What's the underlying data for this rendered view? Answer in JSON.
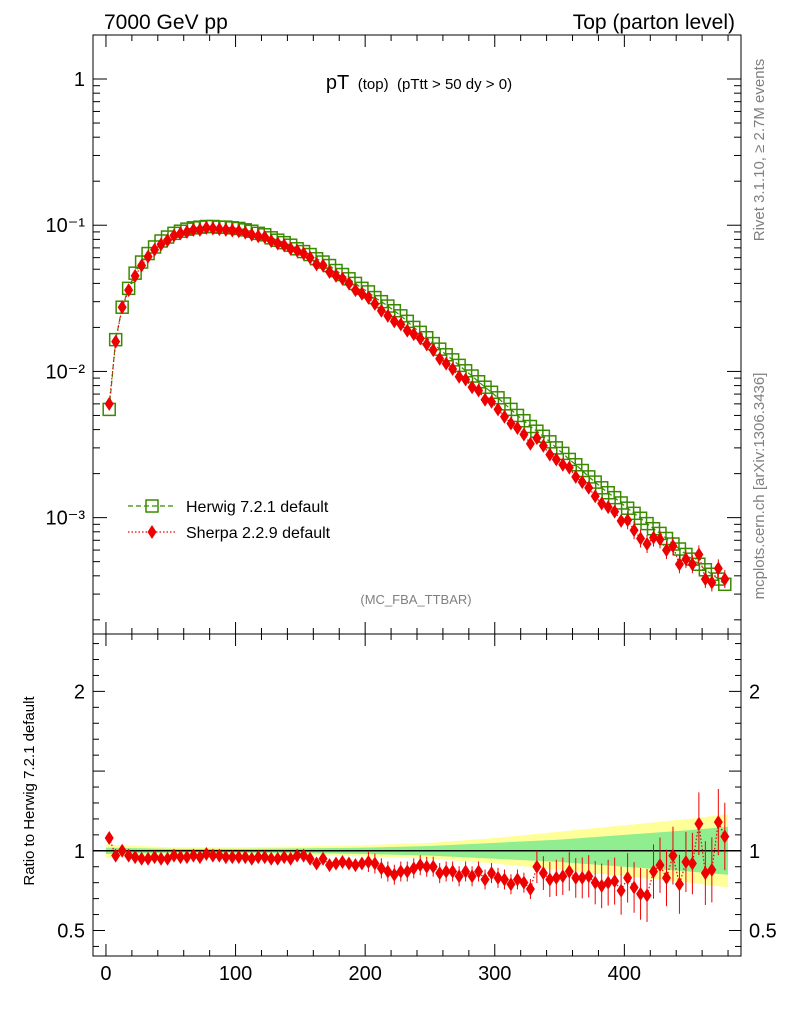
{
  "header": {
    "energy_label": "7000 GeV pp",
    "process_label": "Top (parton level)"
  },
  "side_text": {
    "rivet": "Rivet 3.1.10, ≥ 2.7M events",
    "mcplots": "mcplots.cern.ch [arXiv:1306.3436]"
  },
  "colors": {
    "herwig": "#3a8a00",
    "sherpa": "#ee0000",
    "band_inner": "#90ee90",
    "band_outer": "#ffff99"
  },
  "chart_data": [
    {
      "type": "scatter",
      "panel": "main",
      "title_main": "pT",
      "title_sub": "(top)",
      "title_cut": "(pTtt > 50 dy > 0)",
      "analysis_tag": "(MC_FBA_TTBAR)",
      "xlabel": "",
      "ylabel": "",
      "xlim": [
        -10,
        490
      ],
      "ylim": [
        0.00016,
        2.0
      ],
      "yscale": "log",
      "yticks": [
        {
          "value": 1,
          "label": "1"
        },
        {
          "value": 0.1,
          "label": "10⁻¹"
        },
        {
          "value": 0.01,
          "label": "10⁻²"
        },
        {
          "value": 0.001,
          "label": "10⁻³"
        }
      ],
      "legend_position": "bottom-left",
      "series": [
        {
          "name": "Herwig 7.2.1 default",
          "marker": "open-square",
          "line": "dashed",
          "color": "#3a8a00",
          "x": [
            2.5,
            7.5,
            12.5,
            17.5,
            22.5,
            27.5,
            32.5,
            37.5,
            42.5,
            47.5,
            52.5,
            57.5,
            62.5,
            67.5,
            72.5,
            77.5,
            82.5,
            87.5,
            92.5,
            97.5,
            102.5,
            107.5,
            112.5,
            117.5,
            122.5,
            127.5,
            132.5,
            137.5,
            142.5,
            147.5,
            152.5,
            157.5,
            162.5,
            167.5,
            172.5,
            177.5,
            182.5,
            187.5,
            192.5,
            197.5,
            202.5,
            207.5,
            212.5,
            217.5,
            222.5,
            227.5,
            232.5,
            237.5,
            242.5,
            247.5,
            252.5,
            257.5,
            262.5,
            267.5,
            272.5,
            277.5,
            282.5,
            287.5,
            292.5,
            297.5,
            302.5,
            307.5,
            312.5,
            317.5,
            322.5,
            327.5,
            332.5,
            337.5,
            342.5,
            347.5,
            352.5,
            357.5,
            362.5,
            367.5,
            372.5,
            377.5,
            382.5,
            387.5,
            392.5,
            397.5,
            402.5,
            407.5,
            412.5,
            417.5,
            422.5,
            427.5,
            432.5,
            437.5,
            442.5,
            447.5,
            452.5,
            457.5,
            462.5,
            467.5,
            472.5,
            477.5
          ],
          "values": [
            0.0055,
            0.0165,
            0.0275,
            0.037,
            0.047,
            0.056,
            0.064,
            0.071,
            0.078,
            0.083,
            0.088,
            0.091,
            0.094,
            0.096,
            0.097,
            0.098,
            0.098,
            0.097,
            0.097,
            0.096,
            0.095,
            0.093,
            0.091,
            0.088,
            0.086,
            0.082,
            0.079,
            0.076,
            0.073,
            0.069,
            0.066,
            0.063,
            0.059,
            0.056,
            0.053,
            0.049,
            0.046,
            0.043,
            0.04,
            0.037,
            0.035,
            0.032,
            0.03,
            0.028,
            0.026,
            0.024,
            0.022,
            0.02,
            0.0185,
            0.017,
            0.0155,
            0.0142,
            0.013,
            0.012,
            0.011,
            0.0101,
            0.0093,
            0.0085,
            0.0078,
            0.0072,
            0.0066,
            0.006,
            0.0055,
            0.005,
            0.0046,
            0.0042,
            0.0039,
            0.0036,
            0.0033,
            0.003,
            0.00275,
            0.0025,
            0.0023,
            0.0021,
            0.0019,
            0.00175,
            0.0016,
            0.00148,
            0.00137,
            0.00126,
            0.00116,
            0.00107,
            0.00099,
            0.00091,
            0.00084,
            0.00078,
            0.00072,
            0.00066,
            0.00061,
            0.00056,
            0.00052,
            0.00048,
            0.00044,
            0.00041,
            0.00038,
            0.00035
          ]
        },
        {
          "name": "Sherpa 2.2.9 default",
          "marker": "filled-diamond",
          "line": "dotted",
          "color": "#ee0000",
          "x": [
            2.5,
            7.5,
            12.5,
            17.5,
            22.5,
            27.5,
            32.5,
            37.5,
            42.5,
            47.5,
            52.5,
            57.5,
            62.5,
            67.5,
            72.5,
            77.5,
            82.5,
            87.5,
            92.5,
            97.5,
            102.5,
            107.5,
            112.5,
            117.5,
            122.5,
            127.5,
            132.5,
            137.5,
            142.5,
            147.5,
            152.5,
            157.5,
            162.5,
            167.5,
            172.5,
            177.5,
            182.5,
            187.5,
            192.5,
            197.5,
            202.5,
            207.5,
            212.5,
            217.5,
            222.5,
            227.5,
            232.5,
            237.5,
            242.5,
            247.5,
            252.5,
            257.5,
            262.5,
            267.5,
            272.5,
            277.5,
            282.5,
            287.5,
            292.5,
            297.5,
            302.5,
            307.5,
            312.5,
            317.5,
            322.5,
            327.5,
            332.5,
            337.5,
            342.5,
            347.5,
            352.5,
            357.5,
            362.5,
            367.5,
            372.5,
            377.5,
            382.5,
            387.5,
            392.5,
            397.5,
            402.5,
            407.5,
            412.5,
            417.5,
            422.5,
            427.5,
            432.5,
            437.5,
            442.5,
            447.5,
            452.5,
            457.5,
            462.5,
            467.5,
            472.5,
            477.5
          ],
          "values": [
            0.006,
            0.016,
            0.0275,
            0.036,
            0.045,
            0.053,
            0.061,
            0.068,
            0.074,
            0.079,
            0.085,
            0.088,
            0.09,
            0.093,
            0.093,
            0.096,
            0.095,
            0.094,
            0.093,
            0.092,
            0.091,
            0.089,
            0.086,
            0.084,
            0.083,
            0.078,
            0.075,
            0.073,
            0.069,
            0.067,
            0.064,
            0.06,
            0.054,
            0.053,
            0.048,
            0.045,
            0.043,
            0.04,
            0.036,
            0.034,
            0.032,
            0.029,
            0.026,
            0.024,
            0.022,
            0.021,
            0.019,
            0.018,
            0.0168,
            0.0153,
            0.014,
            0.0122,
            0.0113,
            0.0104,
            0.0092,
            0.0088,
            0.0078,
            0.0074,
            0.0064,
            0.0062,
            0.0055,
            0.0049,
            0.0044,
            0.0041,
            0.0037,
            0.0032,
            0.0035,
            0.0031,
            0.0027,
            0.0025,
            0.0023,
            0.0022,
            0.0019,
            0.00175,
            0.0016,
            0.0014,
            0.00125,
            0.00118,
            0.0011,
            0.00095,
            0.00096,
            0.00082,
            0.00072,
            0.00066,
            0.00073,
            0.00071,
            0.0006,
            0.00064,
            0.00048,
            0.00052,
            0.00048,
            0.00056,
            0.00038,
            0.00036,
            0.00045,
            0.00038
          ]
        }
      ]
    },
    {
      "type": "scatter",
      "panel": "ratio",
      "xlabel": "",
      "ylabel": "Ratio to Herwig 7.2.1 default",
      "xlim": [
        -10,
        490
      ],
      "ylim": [
        0.34,
        2.36
      ],
      "yticks": [
        {
          "value": 0.5,
          "label": "0.5"
        },
        {
          "value": 1,
          "label": "1"
        },
        {
          "value": 2,
          "label": "2"
        }
      ],
      "xticks": [
        {
          "value": 0,
          "label": "0"
        },
        {
          "value": 100,
          "label": "100"
        },
        {
          "value": 200,
          "label": "200"
        },
        {
          "value": 300,
          "label": "300"
        },
        {
          "value": 400,
          "label": "400"
        }
      ],
      "reference_line": 1,
      "band_x": [
        0,
        50,
        100,
        150,
        200,
        250,
        300,
        350,
        400,
        450,
        480
      ],
      "band_inner_half": [
        0.02,
        0.012,
        0.012,
        0.015,
        0.02,
        0.03,
        0.05,
        0.07,
        0.1,
        0.13,
        0.15
      ],
      "band_outer_half": [
        0.04,
        0.022,
        0.022,
        0.028,
        0.035,
        0.05,
        0.08,
        0.12,
        0.16,
        0.2,
        0.23
      ],
      "series": [
        {
          "name": "Sherpa 2.2.9 default / Herwig 7.2.1 default",
          "marker": "filled-diamond",
          "line": "dotted",
          "color": "#ee0000",
          "x": [
            2.5,
            7.5,
            12.5,
            17.5,
            22.5,
            27.5,
            32.5,
            37.5,
            42.5,
            47.5,
            52.5,
            57.5,
            62.5,
            67.5,
            72.5,
            77.5,
            82.5,
            87.5,
            92.5,
            97.5,
            102.5,
            107.5,
            112.5,
            117.5,
            122.5,
            127.5,
            132.5,
            137.5,
            142.5,
            147.5,
            152.5,
            157.5,
            162.5,
            167.5,
            172.5,
            177.5,
            182.5,
            187.5,
            192.5,
            197.5,
            202.5,
            207.5,
            212.5,
            217.5,
            222.5,
            227.5,
            232.5,
            237.5,
            242.5,
            247.5,
            252.5,
            257.5,
            262.5,
            267.5,
            272.5,
            277.5,
            282.5,
            287.5,
            292.5,
            297.5,
            302.5,
            307.5,
            312.5,
            317.5,
            322.5,
            327.5,
            332.5,
            337.5,
            342.5,
            347.5,
            352.5,
            357.5,
            362.5,
            367.5,
            372.5,
            377.5,
            382.5,
            387.5,
            392.5,
            397.5,
            402.5,
            407.5,
            412.5,
            417.5,
            422.5,
            427.5,
            432.5,
            437.5,
            442.5,
            447.5,
            452.5,
            457.5,
            462.5,
            467.5,
            472.5,
            477.5
          ],
          "values": [
            1.08,
            0.97,
            1.0,
            0.97,
            0.96,
            0.95,
            0.95,
            0.96,
            0.95,
            0.95,
            0.97,
            0.96,
            0.96,
            0.97,
            0.96,
            0.98,
            0.97,
            0.97,
            0.96,
            0.96,
            0.96,
            0.96,
            0.95,
            0.96,
            0.96,
            0.95,
            0.95,
            0.96,
            0.95,
            0.97,
            0.97,
            0.95,
            0.92,
            0.95,
            0.91,
            0.92,
            0.93,
            0.92,
            0.91,
            0.92,
            0.93,
            0.92,
            0.89,
            0.87,
            0.85,
            0.87,
            0.87,
            0.89,
            0.91,
            0.9,
            0.9,
            0.86,
            0.87,
            0.87,
            0.84,
            0.87,
            0.84,
            0.87,
            0.82,
            0.86,
            0.83,
            0.82,
            0.79,
            0.82,
            0.8,
            0.76,
            0.9,
            0.86,
            0.82,
            0.83,
            0.84,
            0.87,
            0.83,
            0.83,
            0.84,
            0.8,
            0.78,
            0.8,
            0.81,
            0.75,
            0.83,
            0.77,
            0.73,
            0.72,
            0.87,
            0.91,
            0.83,
            0.97,
            0.79,
            0.93,
            0.92,
            1.17,
            0.86,
            0.88,
            1.18,
            1.09
          ]
        }
      ]
    }
  ]
}
